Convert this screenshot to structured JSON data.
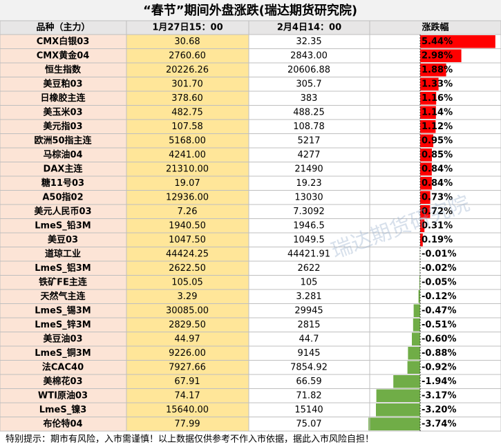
{
  "title": "“春节”期间外盘涨跌(瑞达期货研究院)",
  "header": [
    "品种（主力）",
    "1月27日15：00",
    "2月4日14：00",
    "涨跌幅"
  ],
  "rows": [
    {
      "name": "CMX白银03",
      "before": "30.68",
      "after": "32.35",
      "change": 5.44,
      "change_label": "5.44%"
    },
    {
      "name": "CMX黄金04",
      "before": "2760.60",
      "after": "2843.00",
      "change": 2.98,
      "change_label": "2.98%"
    },
    {
      "name": "恒生指数",
      "before": "20226.26",
      "after": "20606.88",
      "change": 1.88,
      "change_label": "1.88%"
    },
    {
      "name": "美豆粕03",
      "before": "301.70",
      "after": "305.7",
      "change": 1.33,
      "change_label": "1.33%"
    },
    {
      "name": "日橡胶主连",
      "before": "378.60",
      "after": "383",
      "change": 1.16,
      "change_label": "1.16%"
    },
    {
      "name": "美玉米03",
      "before": "482.75",
      "after": "488.25",
      "change": 1.14,
      "change_label": "1.14%"
    },
    {
      "name": "美元指03",
      "before": "107.58",
      "after": "108.78",
      "change": 1.12,
      "change_label": "1.12%"
    },
    {
      "name": "欧洲50指主连",
      "before": "5168.00",
      "after": "5217",
      "change": 0.95,
      "change_label": "0.95%"
    },
    {
      "name": "马棕油04",
      "before": "4241.00",
      "after": "4277",
      "change": 0.85,
      "change_label": "0.85%"
    },
    {
      "name": "DAX主连",
      "before": "21310.00",
      "after": "21490",
      "change": 0.84,
      "change_label": "0.84%"
    },
    {
      "name": "糖11号03",
      "before": "19.07",
      "after": "19.23",
      "change": 0.84,
      "change_label": "0.84%"
    },
    {
      "name": "A50指02",
      "before": "12936.00",
      "after": "13030",
      "change": 0.73,
      "change_label": "0.73%"
    },
    {
      "name": "美元人民币03",
      "before": "7.26",
      "after": "7.3092",
      "change": 0.72,
      "change_label": "0.72%"
    },
    {
      "name": "LmeS_铅3M",
      "before": "1940.50",
      "after": "1946.5",
      "change": 0.31,
      "change_label": "0.31%"
    },
    {
      "name": "美豆03",
      "before": "1047.50",
      "after": "1049.5",
      "change": 0.19,
      "change_label": "0.19%"
    },
    {
      "name": "道琼工业",
      "before": "44424.25",
      "after": "44421.91",
      "change": -0.01,
      "change_label": "-0.01%"
    },
    {
      "name": "LmeS_铝3M",
      "before": "2622.50",
      "after": "2622",
      "change": -0.02,
      "change_label": "-0.02%"
    },
    {
      "name": "铁矿FE主连",
      "before": "105.05",
      "after": "105",
      "change": -0.05,
      "change_label": "-0.05%"
    },
    {
      "name": "天然气主连",
      "before": "3.29",
      "after": "3.281",
      "change": -0.12,
      "change_label": "-0.12%"
    },
    {
      "name": "LmeS_锡3M",
      "before": "30085.00",
      "after": "29945",
      "change": -0.47,
      "change_label": "-0.47%"
    },
    {
      "name": "LmeS_锌3M",
      "before": "2829.50",
      "after": "2815",
      "change": -0.51,
      "change_label": "-0.51%"
    },
    {
      "name": "美豆油03",
      "before": "44.97",
      "after": "44.7",
      "change": -0.6,
      "change_label": "-0.60%"
    },
    {
      "name": "LmeS_铜3M",
      "before": "9226.00",
      "after": "9145",
      "change": -0.88,
      "change_label": "-0.88%"
    },
    {
      "name": "法CAC40",
      "before": "7927.66",
      "after": "7854.92",
      "change": -0.92,
      "change_label": "-0.92%"
    },
    {
      "name": "美棉花03",
      "before": "67.91",
      "after": "66.59",
      "change": -1.94,
      "change_label": "-1.94%"
    },
    {
      "name": "WTI原油03",
      "before": "74.17",
      "after": "71.82",
      "change": -3.17,
      "change_label": "-3.17%"
    },
    {
      "name": "LmeS_镍3",
      "before": "15640.00",
      "after": "15140",
      "change": -3.2,
      "change_label": "-3.20%"
    },
    {
      "name": "布伦特04",
      "before": "77.99",
      "after": "75.07",
      "change": -3.74,
      "change_label": "-3.74%"
    }
  ],
  "watermark": "瑞达期货研究院",
  "footer": "特别提示：期市有风险，入市需谨慎！以上数据仅供参考不作入市依据，据此入市风险自担！"
}
